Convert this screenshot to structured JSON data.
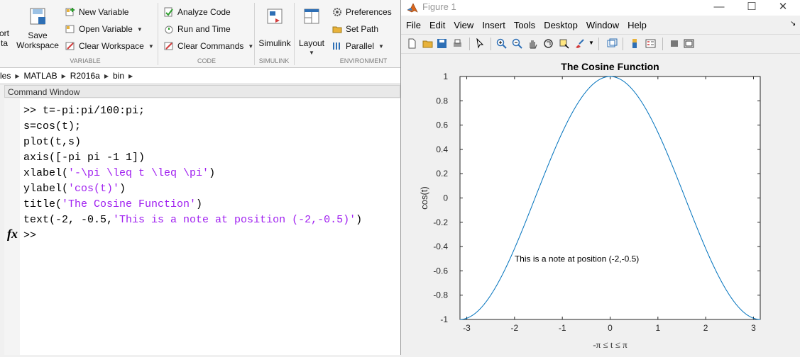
{
  "toolstrip": {
    "partial_btn_line1": "ort",
    "partial_btn_line2": "ta",
    "save_workspace_line1": "Save",
    "save_workspace_line2": "Workspace",
    "new_variable": "New Variable",
    "open_variable": "Open Variable",
    "clear_workspace": "Clear Workspace",
    "analyze_code": "Analyze Code",
    "run_and_time": "Run and Time",
    "clear_commands": "Clear Commands",
    "simulink": "Simulink",
    "layout": "Layout",
    "preferences": "Preferences",
    "set_path": "Set Path",
    "parallel": "Parallel",
    "sections": {
      "variable": "VARIABLE",
      "code": "CODE",
      "simulink": "SIMULINK",
      "environment": "ENVIRONMENT"
    }
  },
  "address_bar": {
    "crumbs": [
      "les",
      "MATLAB",
      "R2016a",
      "bin"
    ]
  },
  "command_window": {
    "title": "Command Window",
    "lines": [
      {
        "prefix": ">> t=-pi:pi/100:pi;",
        "string": "",
        "suffix": ""
      },
      {
        "prefix": "s=cos(t);",
        "string": "",
        "suffix": ""
      },
      {
        "prefix": "plot(t,s)",
        "string": "",
        "suffix": ""
      },
      {
        "prefix": "axis([-pi pi -1 1])",
        "string": "",
        "suffix": ""
      },
      {
        "prefix": "xlabel(",
        "string": "'-\\pi \\leq t \\leq \\pi'",
        "suffix": ")"
      },
      {
        "prefix": "ylabel(",
        "string": "'cos(t)'",
        "suffix": ")"
      },
      {
        "prefix": "title(",
        "string": "'The Cosine Function'",
        "suffix": ")"
      },
      {
        "prefix": "text(-2, -0.5,",
        "string": "'This is a note at position (-2,-0.5)'",
        "suffix": ")"
      }
    ],
    "prompt": ">>",
    "fx": "fx"
  },
  "figure": {
    "window_title": "Figure 1",
    "menu": [
      "File",
      "Edit",
      "View",
      "Insert",
      "Tools",
      "Desktop",
      "Window",
      "Help"
    ],
    "controls": {
      "minimize": "—",
      "maximize": "☐",
      "close": "✕"
    }
  },
  "chart_data": {
    "type": "line",
    "title": "The Cosine Function",
    "xlabel": "-π ≤ t ≤ π",
    "ylabel": "cos(t)",
    "xlim": [
      -3.14159,
      3.14159
    ],
    "ylim": [
      -1,
      1
    ],
    "xticks": [
      -3,
      -2,
      -1,
      0,
      1,
      2,
      3
    ],
    "yticks": [
      -1,
      -0.8,
      -0.6,
      -0.4,
      -0.2,
      0,
      0.2,
      0.4,
      0.6,
      0.8,
      1
    ],
    "series": [
      {
        "function": "cos(t)",
        "t_start": -3.14159,
        "t_end": 3.14159,
        "samples": 201,
        "color": "#0072bd"
      }
    ],
    "annotation": {
      "x": -2,
      "y": -0.5,
      "text": "This is a note at position (-2,-0.5)"
    },
    "grid": false
  }
}
